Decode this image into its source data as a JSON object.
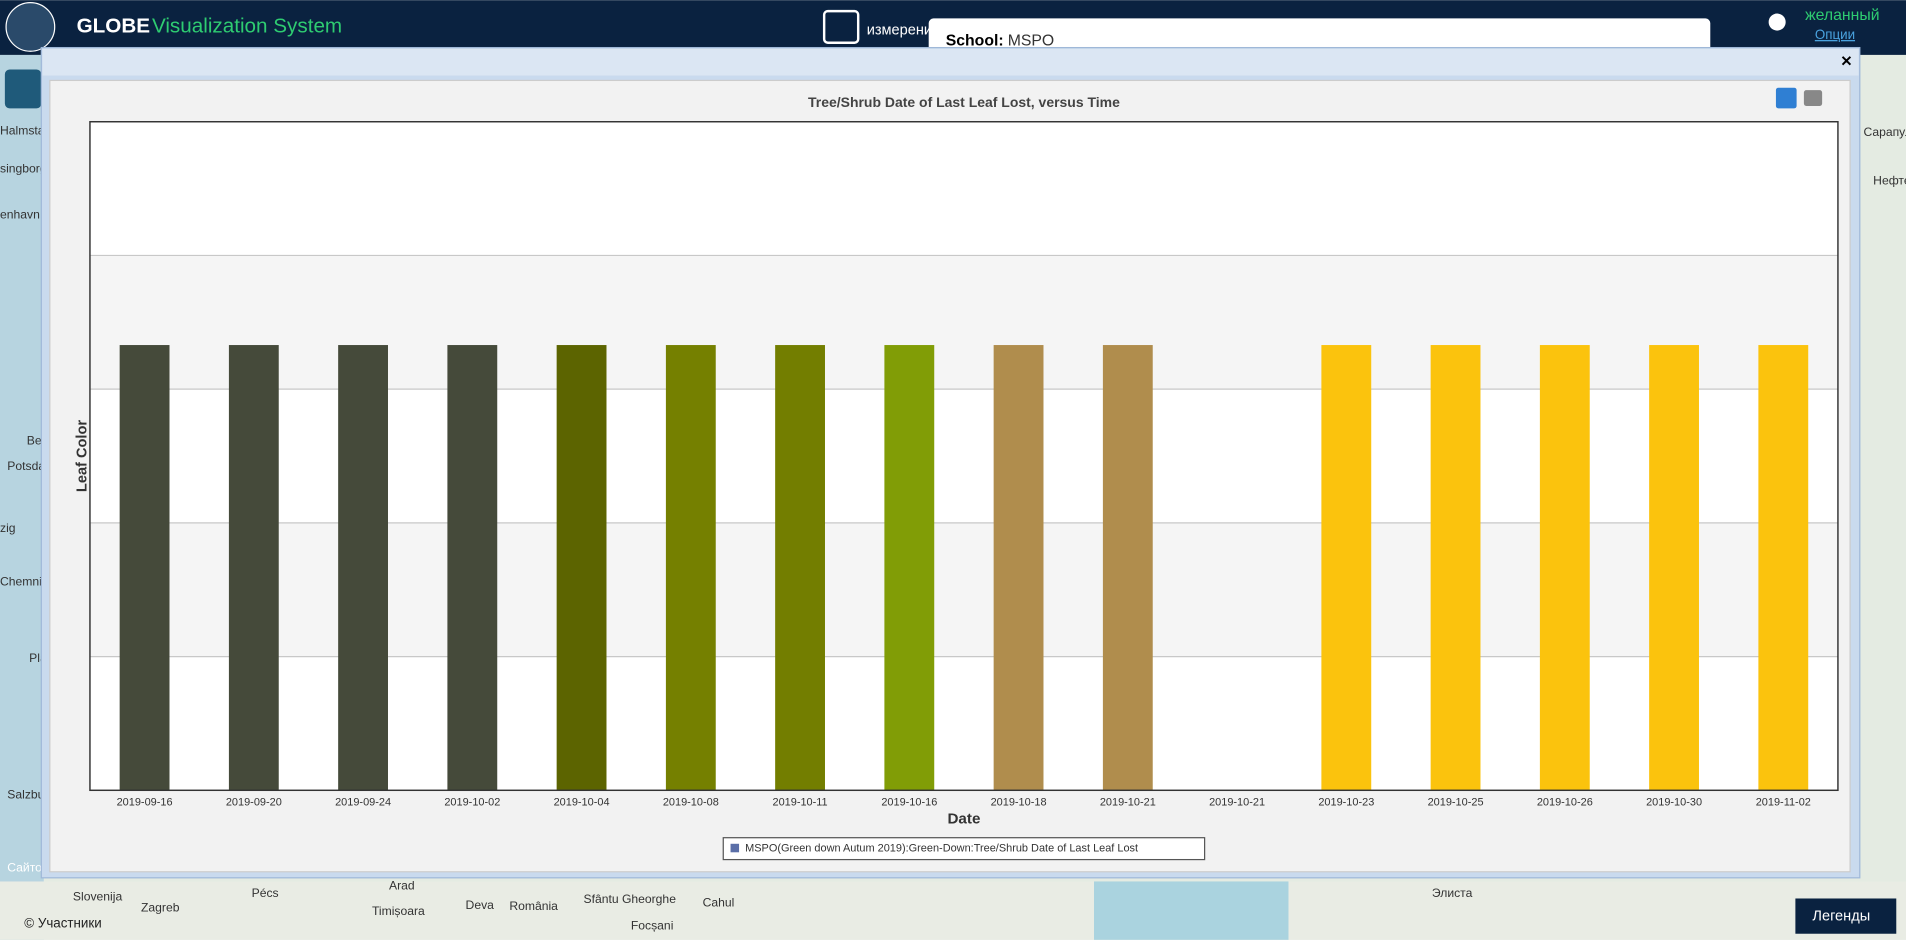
{
  "header": {
    "brand": "GLOBE",
    "product": "Visualization System",
    "measure": "измерени",
    "user": "желанный",
    "options": "Опции"
  },
  "school_panel": {
    "label": "School:",
    "name": "MSPO"
  },
  "map_labels": [
    "Halmstad",
    "singborg",
    "enhavn",
    "Be",
    "Potsdam",
    "zig",
    "Chemnit",
    "Pla",
    "Salzbur",
    "Slovenija",
    "Zagreb",
    "Pécs",
    "Arad",
    "Timișoara",
    "Deva",
    "România",
    "Sfântu Gheorghe",
    "Focșani",
    "Cahul",
    "Элиста",
    "Сарапул",
    "Нефтек",
    "Сайто"
  ],
  "footer": {
    "attribution": "© Участники",
    "legends": "Легенды"
  },
  "chart_data": {
    "type": "bar",
    "title": "Tree/Shrub Date of Last Leaf Lost, versus Time",
    "x_label": "Date",
    "y_label": "Leaf Color",
    "categories": [
      "2019-09-16",
      "2019-09-20",
      "2019-09-24",
      "2019-10-02",
      "2019-10-04",
      "2019-10-08",
      "2019-10-11",
      "2019-10-16",
      "2019-10-18",
      "2019-10-21",
      "2019-10-21",
      "2019-10-23",
      "2019-10-25",
      "2019-10-26",
      "2019-10-30",
      "2019-11-02"
    ],
    "values": [
      3.33,
      3.33,
      3.33,
      3.33,
      3.33,
      3.33,
      3.33,
      3.33,
      3.33,
      3.33,
      null,
      3.33,
      3.33,
      3.33,
      3.33,
      3.33
    ],
    "colors": [
      "#454a3a",
      "#454a3a",
      "#454a3a",
      "#454a3a",
      "#5c6400",
      "#758000",
      "#737e00",
      "#819d06",
      "#b08d4d",
      "#b08d4d",
      null,
      "#fbc30d",
      "#fbc30d",
      "#fbc30d",
      "#fbc30d",
      "#fbc30d"
    ],
    "ylim": [
      0,
      5
    ],
    "yticks": [
      0,
      1,
      2,
      3,
      4,
      5
    ],
    "grid": true,
    "legend": "MSPO(Green down Autum 2019):Green-Down:Tree/Shrub Date of Last Leaf Lost"
  }
}
